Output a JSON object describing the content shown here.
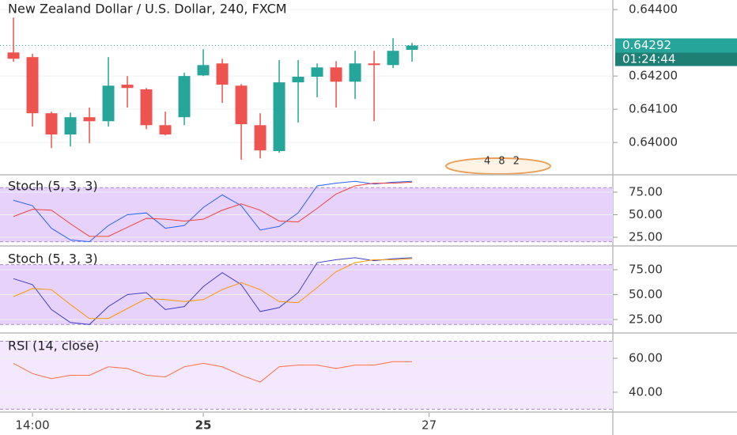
{
  "chart_data": [
    {
      "type": "candlestick",
      "title": "New Zealand Dollar / U.S. Dollar, 240, FXCM",
      "x": [
        0,
        1,
        2,
        3,
        4,
        5,
        6,
        7,
        8,
        9,
        10,
        11,
        12,
        13,
        14,
        15,
        16,
        17,
        18,
        19,
        20,
        21
      ],
      "xlim": [
        -0.71,
        31.58
      ],
      "xticks": [
        {
          "value": 1,
          "label": "14:00"
        },
        {
          "value": 10,
          "label": "25"
        },
        {
          "value": 21.9,
          "label": "27"
        }
      ],
      "open": [
        0.64271,
        0.64257,
        0.64088,
        0.64024,
        0.64076,
        0.64064,
        0.64174,
        0.6416,
        0.64052,
        0.64076,
        0.64202,
        0.64238,
        0.64171,
        0.64052,
        0.63974,
        0.64181,
        0.64198,
        0.64226,
        0.64183,
        0.64238,
        0.64233,
        0.64279
      ],
      "high": [
        0.64376,
        0.64267,
        0.64093,
        0.6409,
        0.64105,
        0.64257,
        0.642,
        0.64164,
        0.64093,
        0.6421,
        0.64281,
        0.64252,
        0.64176,
        0.64088,
        0.64248,
        0.64248,
        0.64238,
        0.64245,
        0.64276,
        0.64276,
        0.64314,
        0.643
      ],
      "low": [
        0.64243,
        0.64048,
        0.63983,
        0.63988,
        0.63998,
        0.64048,
        0.64105,
        0.6404,
        0.64021,
        0.64052,
        0.642,
        0.64119,
        0.63948,
        0.63952,
        0.63969,
        0.6406,
        0.64136,
        0.64105,
        0.64131,
        0.64064,
        0.64224,
        0.64243
      ],
      "close": [
        0.64252,
        0.64088,
        0.64024,
        0.64076,
        0.64064,
        0.64171,
        0.64164,
        0.64052,
        0.64024,
        0.642,
        0.64233,
        0.64174,
        0.64055,
        0.63976,
        0.64181,
        0.64198,
        0.64226,
        0.64183,
        0.64238,
        0.64233,
        0.64276,
        0.64292
      ],
      "up_color": "#26a69a",
      "down_color": "#ef5350",
      "ylim": [
        0.64429,
        0.63905
      ],
      "yticks": [
        {
          "value": 0.644,
          "label": "0.64400"
        },
        {
          "value": 0.642,
          "label": "0.64200"
        },
        {
          "value": 0.641,
          "label": "0.64100"
        },
        {
          "value": 0.64,
          "label": "0.64000"
        }
      ],
      "last_price": {
        "value": 0.64292,
        "label": "0.64292"
      },
      "countdown": "01:24:44",
      "watermark": "4 8 2"
    },
    {
      "type": "line",
      "title": "Stoch (5, 3, 3)",
      "ylim": [
        93.4,
        16.2
      ],
      "yticks": [
        {
          "value": 75,
          "label": "75.00"
        },
        {
          "value": 50,
          "label": "50.00"
        },
        {
          "value": 25,
          "label": "25.00"
        }
      ],
      "band": [
        80,
        20
      ],
      "band_color": "#e6d2fb",
      "series": [
        {
          "color": "#2962ff",
          "values": [
            66,
            60,
            35,
            22,
            20,
            38,
            50,
            52,
            35,
            38,
            58,
            72,
            60,
            33,
            37,
            52,
            82,
            85,
            87,
            84,
            86,
            87
          ]
        },
        {
          "color": "#f44336",
          "values": [
            48,
            56,
            55,
            40,
            26,
            26,
            36,
            46,
            45,
            43,
            45,
            55,
            62,
            55,
            43,
            42,
            57,
            73,
            82,
            85,
            85,
            86
          ]
        }
      ]
    },
    {
      "type": "line",
      "title": "Stoch (5, 3, 3)",
      "ylim": [
        96.4,
        12.3
      ],
      "yticks": [
        {
          "value": 75,
          "label": "75.00"
        },
        {
          "value": 50,
          "label": "50.00"
        },
        {
          "value": 25,
          "label": "25.00"
        }
      ],
      "band": [
        80,
        20
      ],
      "band_color": "#e6d2fb",
      "series": [
        {
          "color": "#3f3fc8",
          "values": [
            66,
            60,
            35,
            22,
            20,
            38,
            50,
            52,
            35,
            38,
            58,
            72,
            60,
            33,
            37,
            52,
            82,
            85,
            87,
            84,
            86,
            87
          ]
        },
        {
          "color": "#ff9800",
          "values": [
            48,
            56,
            55,
            40,
            26,
            26,
            36,
            46,
            45,
            43,
            45,
            55,
            62,
            55,
            43,
            42,
            57,
            73,
            82,
            85,
            85,
            86
          ]
        }
      ]
    },
    {
      "type": "line",
      "title": "RSI (14, close)",
      "ylim": [
        73.5,
        28.8
      ],
      "yticks": [
        {
          "value": 60,
          "label": "60.00"
        },
        {
          "value": 40,
          "label": "40.00"
        }
      ],
      "band": [
        70,
        30
      ],
      "band_color": "#f3e8fd",
      "series": [
        {
          "color": "#ff7043",
          "values": [
            57,
            51,
            48,
            50,
            50,
            55,
            54,
            50,
            49,
            55,
            57,
            55,
            50,
            46,
            55,
            56,
            56,
            54,
            56,
            56,
            58,
            58
          ]
        }
      ]
    }
  ]
}
